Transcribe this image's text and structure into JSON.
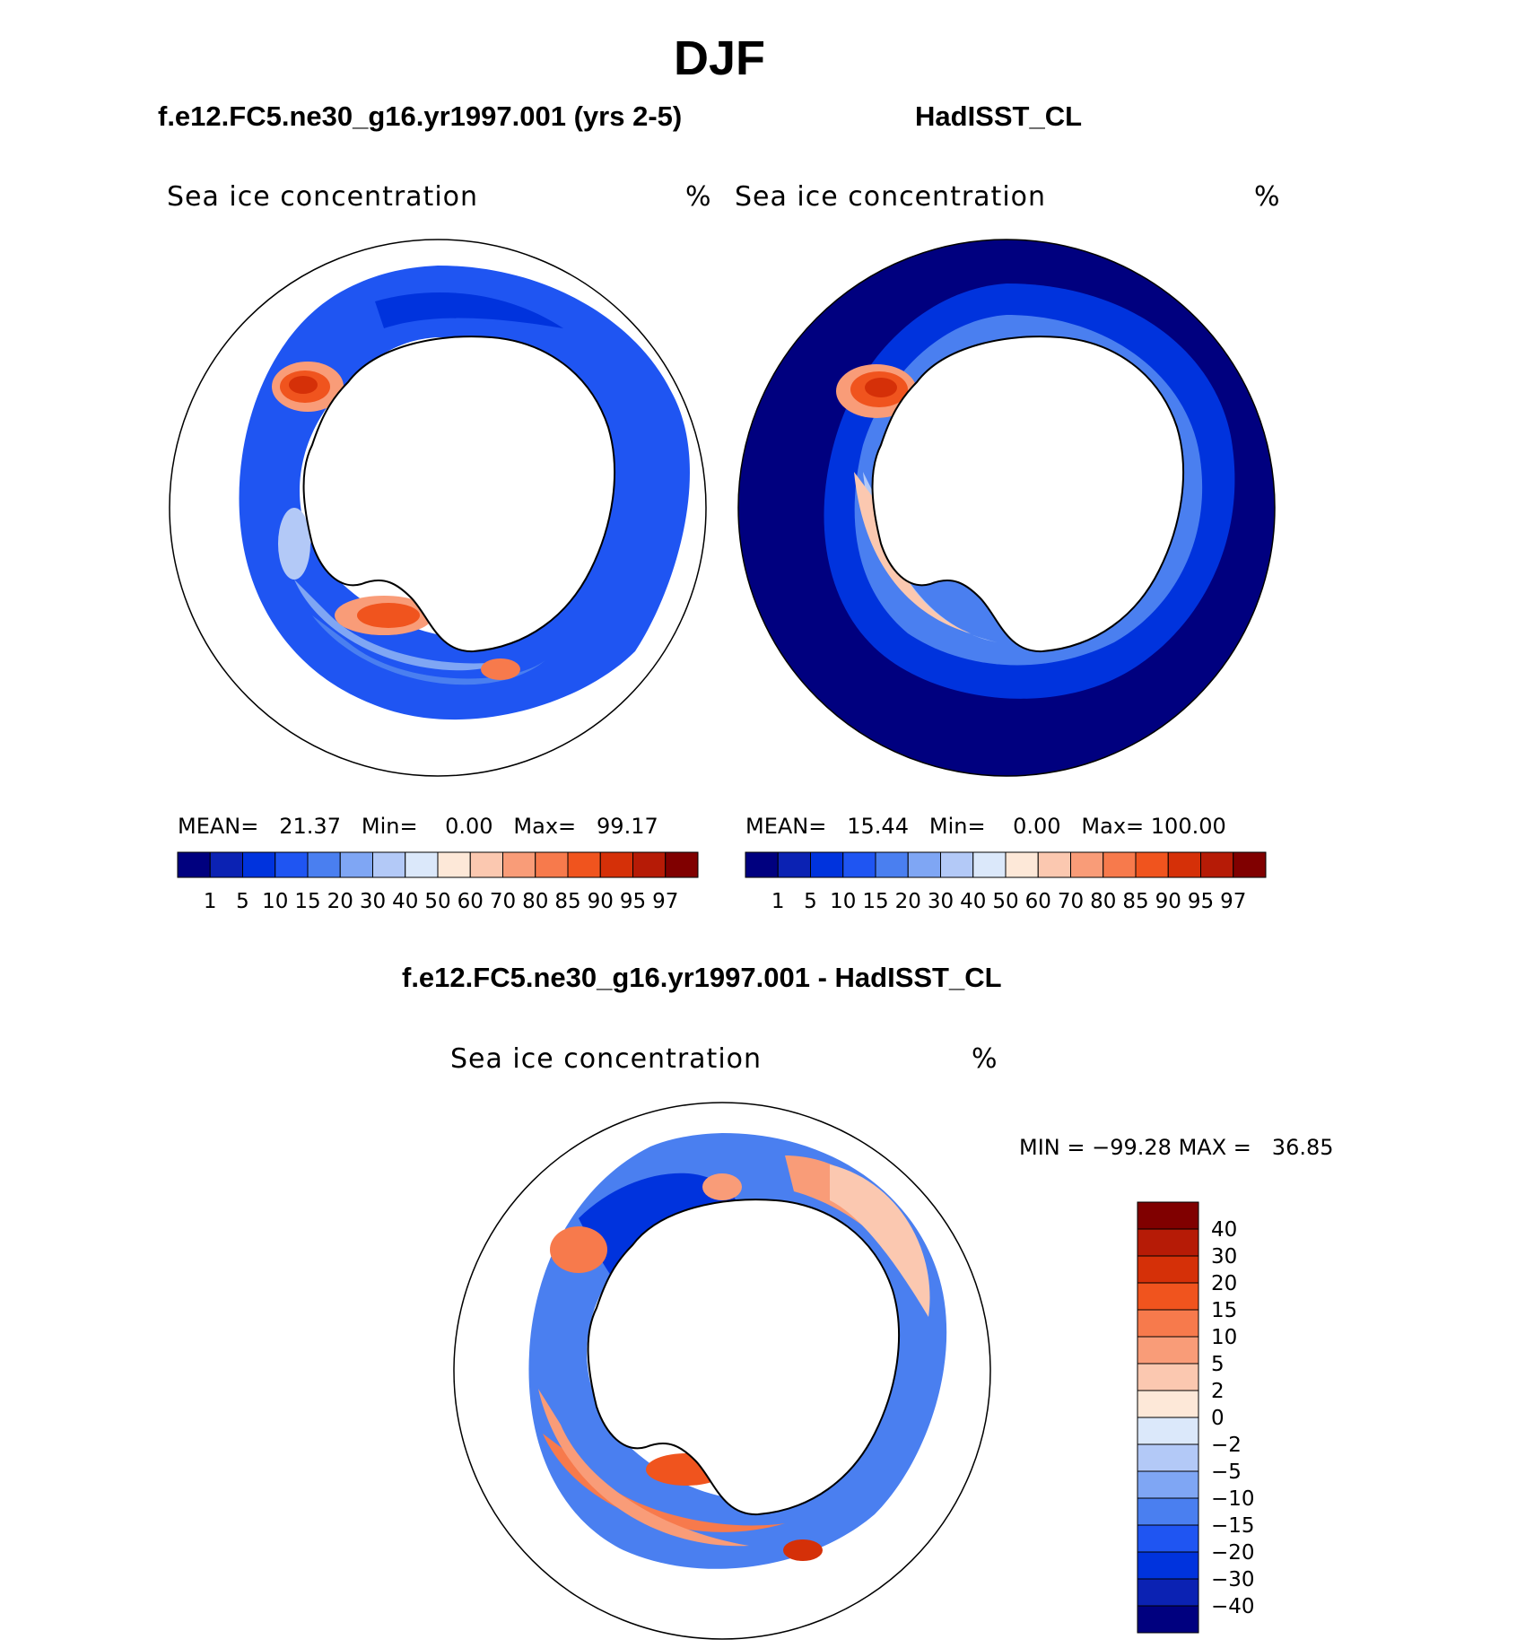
{
  "title": "DJF",
  "top_left": {
    "case_title": "f.e12.FC5.ne30_g16.yr1997.001 (yrs 2-5)",
    "variable": "Sea ice concentration",
    "units": "%",
    "stats": {
      "mean_label": "MEAN=",
      "mean": "21.37",
      "min_label": "Min=",
      "min": "0.00",
      "max_label": "Max=",
      "max": "99.17"
    }
  },
  "top_right": {
    "case_title": "HadISST_CL",
    "variable": "Sea ice concentration",
    "units": "%",
    "stats": {
      "mean_label": "MEAN=",
      "mean": "15.44",
      "min_label": "Min=",
      "min": "0.00",
      "max_label": "Max=",
      "max": "100.00"
    }
  },
  "bottom": {
    "case_title": "f.e12.FC5.ne30_g16.yr1997.001 - HadISST_CL",
    "variable": "Sea ice concentration",
    "units": "%",
    "stats": {
      "min_label": "MIN =",
      "min": "−99.28",
      "max_label": "MAX =",
      "max": "36.85"
    }
  },
  "colors": {
    "abs_scale": [
      "#00007f",
      "#0b22b3",
      "#0033dd",
      "#1f55f2",
      "#4a7ff0",
      "#7fa6f4",
      "#b3c9f7",
      "#dbe8fa",
      "#fde8d8",
      "#fbc8b0",
      "#f99c78",
      "#f77a4c",
      "#f0541e",
      "#d53008",
      "#b61b06",
      "#800000"
    ],
    "diff_scale": [
      "#00007f",
      "#0b22b3",
      "#0033dd",
      "#1f55f2",
      "#4a7ff0",
      "#7fa6f4",
      "#b3c9f7",
      "#dbe8fa",
      "#fde8d8",
      "#fbc8b0",
      "#f99c78",
      "#f77a4c",
      "#f0541e",
      "#d53008",
      "#b61b06",
      "#800000"
    ]
  },
  "chart_data": [
    {
      "type": "heatmap",
      "projection": "south-polar-stereographic",
      "title": "Sea ice concentration",
      "subtitle": "f.e12.FC5.ne30_g16.yr1997.001 (yrs 2-5)",
      "units": "%",
      "mean": 21.37,
      "min": 0.0,
      "max": 99.17,
      "colorbar_levels": [
        1,
        5,
        10,
        15,
        20,
        30,
        40,
        50,
        60,
        70,
        80,
        85,
        90,
        95,
        97
      ],
      "colorbar_tick_labels": [
        "1",
        "5",
        "10",
        "15",
        "20",
        "30",
        "40",
        "50",
        "60",
        "70",
        "80",
        "85",
        "90",
        "95",
        "97"
      ]
    },
    {
      "type": "heatmap",
      "projection": "south-polar-stereographic",
      "title": "Sea ice concentration",
      "subtitle": "HadISST_CL",
      "units": "%",
      "mean": 15.44,
      "min": 0.0,
      "max": 100.0,
      "colorbar_levels": [
        1,
        5,
        10,
        15,
        20,
        30,
        40,
        50,
        60,
        70,
        80,
        85,
        90,
        95,
        97
      ],
      "colorbar_tick_labels": [
        "1",
        "5",
        "10",
        "15",
        "20",
        "30",
        "40",
        "50",
        "60",
        "70",
        "80",
        "85",
        "90",
        "95",
        "97"
      ]
    },
    {
      "type": "heatmap",
      "projection": "south-polar-stereographic",
      "title": "Sea ice concentration",
      "subtitle": "f.e12.FC5.ne30_g16.yr1997.001 - HadISST_CL",
      "units": "%",
      "min": -99.28,
      "max": 36.85,
      "colorbar_levels": [
        40,
        30,
        20,
        15,
        10,
        5,
        2,
        0,
        -2,
        -5,
        -10,
        -15,
        -20,
        -30,
        -40
      ],
      "colorbar_tick_labels": [
        "40",
        "30",
        "20",
        "15",
        "10",
        "5",
        "2",
        "0",
        "−2",
        "−5",
        "−10",
        "−15",
        "−20",
        "−30",
        "−40"
      ]
    }
  ]
}
